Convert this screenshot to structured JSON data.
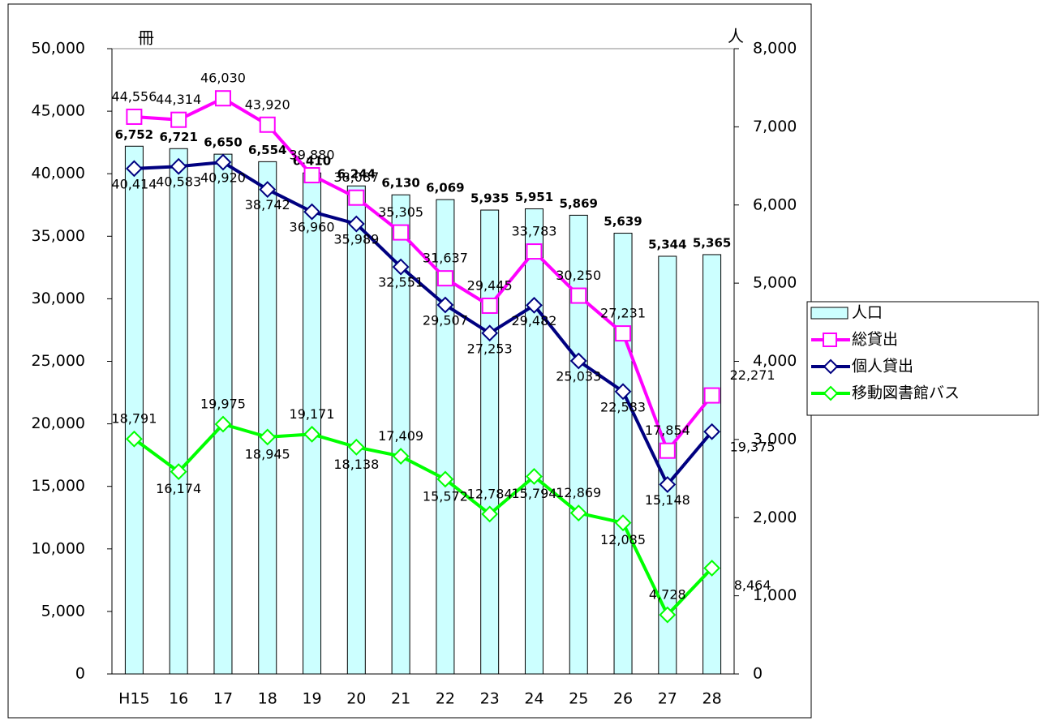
{
  "chart_data": {
    "type": "combo",
    "ylabel": "冊",
    "y2label": "人",
    "categories": [
      "H15",
      "16",
      "17",
      "18",
      "19",
      "20",
      "21",
      "22",
      "23",
      "24",
      "25",
      "26",
      "27",
      "28"
    ],
    "ylim": [
      0,
      50000
    ],
    "yticks": [
      0,
      {
        "value": 5000,
        "label": "5,000"
      },
      {
        "value": 10000,
        "label": "10,000"
      },
      {
        "value": 15000,
        "label": "15,000"
      },
      {
        "value": 20000,
        "label": "20,000"
      },
      {
        "value": 25000,
        "label": "25,000"
      },
      {
        "value": 30000,
        "label": "30,000"
      },
      {
        "value": 35000,
        "label": "35,000"
      },
      {
        "value": 40000,
        "label": "40,000"
      },
      {
        "value": 45000,
        "label": "45,000"
      },
      {
        "value": 50000,
        "label": "50,000"
      }
    ],
    "y2lim": [
      0,
      8000
    ],
    "y2ticks": [
      0,
      {
        "value": 1000,
        "label": "1,000"
      },
      {
        "value": 2000,
        "label": "2,000"
      },
      {
        "value": 3000,
        "label": "3,000"
      },
      {
        "value": 4000,
        "label": "4,000"
      },
      {
        "value": 5000,
        "label": "5,000"
      },
      {
        "value": 6000,
        "label": "6,000"
      },
      {
        "value": 7000,
        "label": "7,000"
      },
      {
        "value": 8000,
        "label": "8,000"
      }
    ],
    "legend": "right",
    "series": [
      {
        "name": "人口",
        "type": "bar",
        "axis": "y2",
        "color": "#ccffff",
        "values": [
          6752,
          6721,
          6650,
          6554,
          6410,
          6244,
          6130,
          6069,
          5935,
          5951,
          5869,
          5639,
          5344,
          5365
        ],
        "value_labels": [
          "6,752",
          "6,721",
          "6,650",
          "6,554",
          "6,410",
          "6,244",
          "6,130",
          "6,069",
          "5,935",
          "5,951",
          "5,869",
          "5,639",
          "5,344",
          "5,365"
        ]
      },
      {
        "name": "総貸出",
        "type": "line",
        "marker": "square",
        "color": "#ff00ff",
        "values": [
          44556,
          44314,
          46030,
          43920,
          39880,
          38087,
          35305,
          31637,
          29445,
          33783,
          30250,
          27231,
          17854,
          22271
        ],
        "value_labels": [
          "44,556",
          "44,314",
          "46,030",
          "43,920",
          "39,880",
          "38,087",
          "35,305",
          "31,637",
          "29,445",
          "33,783",
          "30,250",
          "27,231",
          "17,854",
          "22,271"
        ]
      },
      {
        "name": "個人貸出",
        "type": "line",
        "marker": "diamond",
        "color": "#000080",
        "values": [
          40414,
          40583,
          40920,
          38742,
          36960,
          35989,
          32551,
          29507,
          27253,
          29482,
          25033,
          22583,
          15148,
          19375
        ],
        "value_labels": [
          "40,414",
          "40,583",
          "40,920",
          "38,742",
          "36,960",
          "35,989",
          "32,551",
          "29,507",
          "27,253",
          "29,482",
          "25,033",
          "22,583",
          "15,148",
          "19,375"
        ]
      },
      {
        "name": "移動図書館バス",
        "type": "line",
        "marker": "diamond",
        "color": "#00ff00",
        "values": [
          18791,
          16174,
          19975,
          18945,
          19171,
          18138,
          17409,
          15572,
          12784,
          15794,
          12869,
          12085,
          4728,
          8464
        ],
        "value_labels": [
          "18,791",
          "16,174",
          "19,975",
          "18,945",
          "19,171",
          "18,138",
          "17,409",
          "15,572",
          "12,784",
          "15,794",
          "12,869",
          "12,085",
          "4,728",
          "8,464"
        ]
      }
    ]
  }
}
